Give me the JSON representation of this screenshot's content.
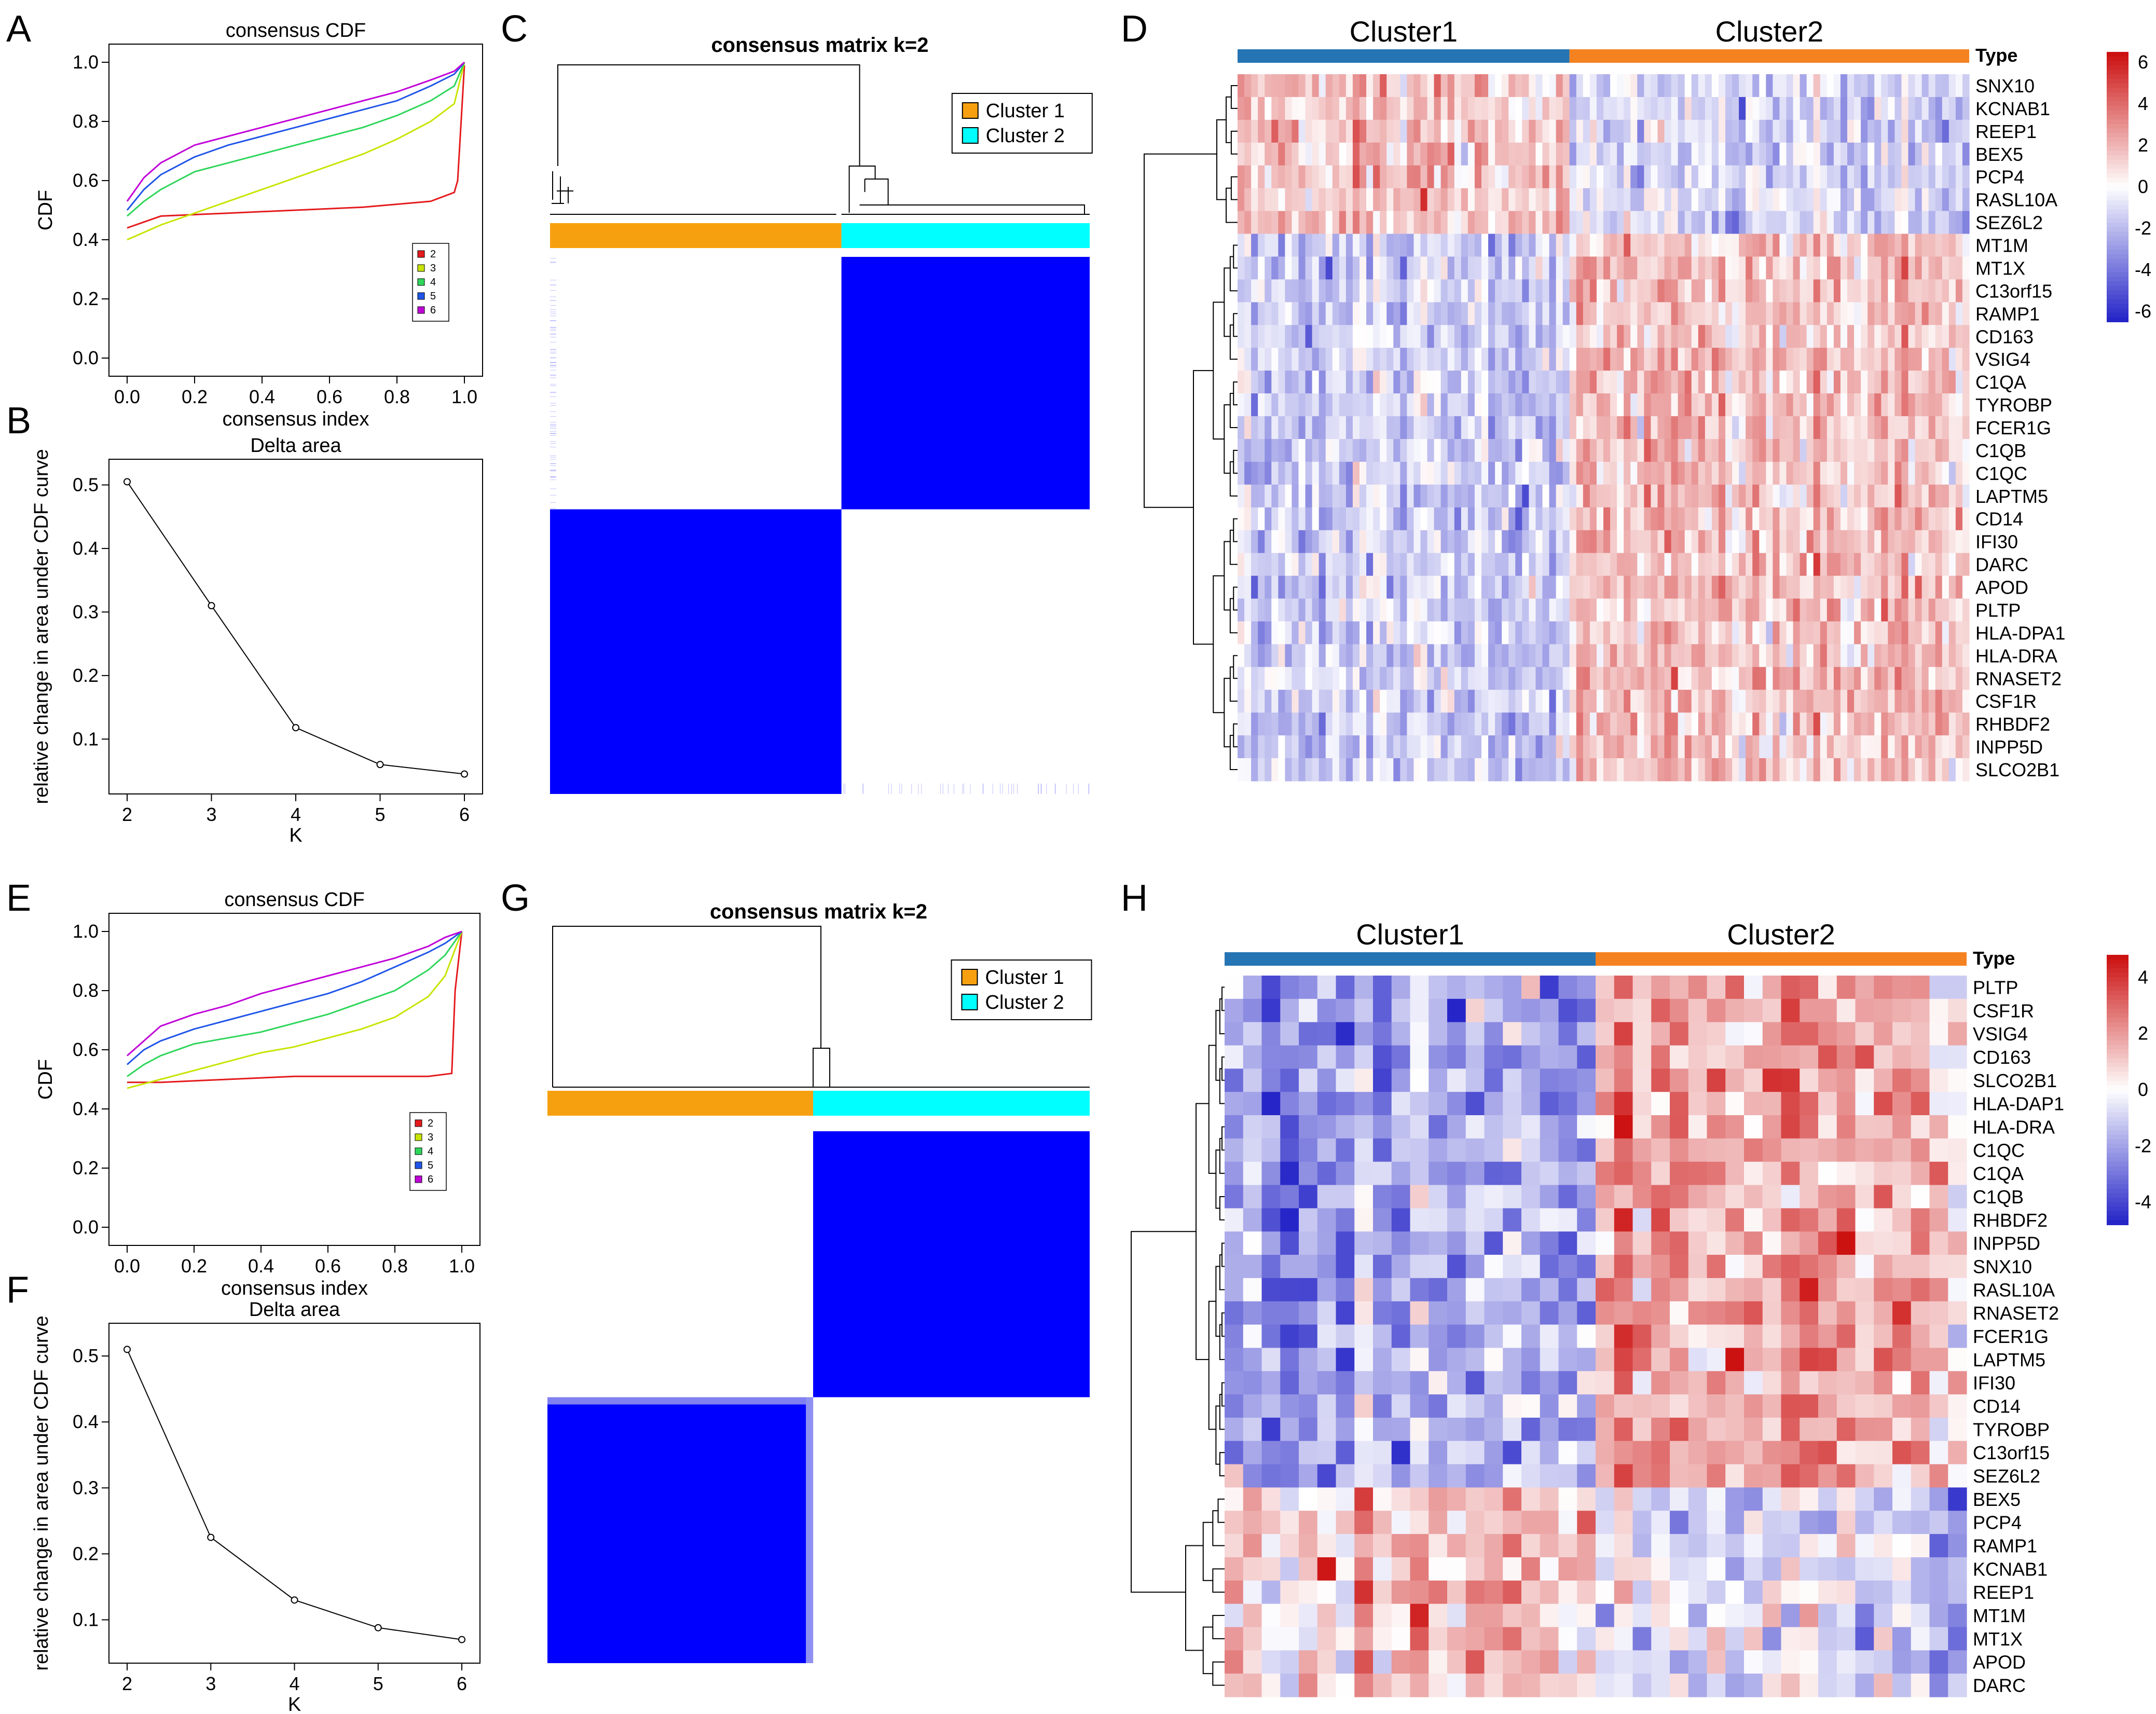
{
  "colors": {
    "cluster1_bar": "#F7A00F",
    "cluster2_bar": "#00FFFF",
    "matrix_blue": "#0000FF",
    "heat_low": "#2626C8",
    "heat_mid": "#FFFFFF",
    "heat_high": "#CC1111",
    "type_cluster1": "#2574B4",
    "type_cluster2": "#F58220",
    "cdf_series": [
      "#E41A1C",
      "#C8E400",
      "#2ED65A",
      "#2055E8",
      "#C000D8"
    ]
  },
  "chart_data": [
    {
      "panel": "A",
      "type": "line",
      "title": "consensus CDF",
      "xlabel": "consensus index",
      "ylabel": "CDF",
      "xlim": [
        0,
        1
      ],
      "ylim": [
        0,
        1
      ],
      "xticks": [
        "0.0",
        "0.2",
        "0.4",
        "0.6",
        "0.8",
        "1.0"
      ],
      "yticks": [
        "0.0",
        "0.2",
        "0.4",
        "0.6",
        "0.8",
        "1.0"
      ],
      "legend": [
        "2",
        "3",
        "4",
        "5",
        "6"
      ],
      "series": [
        {
          "name": "2",
          "x": [
            0,
            0.05,
            0.1,
            0.3,
            0.5,
            0.7,
            0.9,
            0.97,
            0.98,
            1.0
          ],
          "y": [
            0.44,
            0.46,
            0.48,
            0.49,
            0.5,
            0.51,
            0.53,
            0.56,
            0.6,
            0.99
          ]
        },
        {
          "name": "3",
          "x": [
            0,
            0.1,
            0.2,
            0.3,
            0.4,
            0.5,
            0.6,
            0.7,
            0.8,
            0.9,
            0.97,
            1.0
          ],
          "y": [
            0.4,
            0.45,
            0.49,
            0.53,
            0.57,
            0.61,
            0.65,
            0.69,
            0.74,
            0.8,
            0.86,
            1.0
          ]
        },
        {
          "name": "4",
          "x": [
            0,
            0.05,
            0.1,
            0.2,
            0.3,
            0.4,
            0.5,
            0.6,
            0.7,
            0.8,
            0.9,
            0.97,
            1.0
          ],
          "y": [
            0.48,
            0.53,
            0.57,
            0.63,
            0.66,
            0.69,
            0.72,
            0.75,
            0.78,
            0.82,
            0.87,
            0.92,
            1.0
          ]
        },
        {
          "name": "5",
          "x": [
            0,
            0.05,
            0.1,
            0.2,
            0.3,
            0.4,
            0.5,
            0.6,
            0.7,
            0.8,
            0.9,
            0.97,
            1.0
          ],
          "y": [
            0.5,
            0.57,
            0.62,
            0.68,
            0.72,
            0.75,
            0.78,
            0.81,
            0.84,
            0.87,
            0.92,
            0.96,
            1.0
          ]
        },
        {
          "name": "6",
          "x": [
            0,
            0.05,
            0.1,
            0.2,
            0.3,
            0.4,
            0.5,
            0.6,
            0.7,
            0.8,
            0.9,
            0.97,
            1.0
          ],
          "y": [
            0.53,
            0.61,
            0.66,
            0.72,
            0.75,
            0.78,
            0.81,
            0.84,
            0.87,
            0.9,
            0.94,
            0.97,
            1.0
          ]
        }
      ]
    },
    {
      "panel": "B",
      "type": "line",
      "title": "Delta area",
      "xlabel": "K",
      "ylabel": "relative change in area under CDF curve",
      "x": [
        2,
        3,
        4,
        5,
        6
      ],
      "y": [
        0.505,
        0.31,
        0.118,
        0.06,
        0.045
      ],
      "xlim": [
        2,
        6
      ],
      "ylim": [
        0.03,
        0.52
      ],
      "xticks": [
        "2",
        "3",
        "4",
        "5",
        "6"
      ],
      "yticks": [
        "0.1",
        "0.2",
        "0.3",
        "0.4",
        "0.5"
      ]
    },
    {
      "panel": "C",
      "type": "heatmap",
      "title": "consensus matrix k=2",
      "legend": [
        "Cluster 1",
        "Cluster 2"
      ],
      "cluster_fraction": [
        0.54,
        0.46
      ]
    },
    {
      "panel": "D",
      "type": "heatmap",
      "clusters": [
        "Cluster1",
        "Cluster2"
      ],
      "annotation_label": "Type",
      "cluster_fraction": [
        0.45,
        0.55
      ],
      "columns": 108,
      "genes": [
        "SNX10",
        "KCNAB1",
        "REEP1",
        "BEX5",
        "PCP4",
        "RASL10A",
        "SEZ6L2",
        "MT1M",
        "MT1X",
        "C13orf15",
        "RAMP1",
        "CD163",
        "VSIG4",
        "C1QA",
        "TYROBP",
        "FCER1G",
        "C1QB",
        "C1QC",
        "LAPTM5",
        "CD14",
        "IFI30",
        "DARC",
        "APOD",
        "PLTP",
        "HLA-DPA1",
        "HLA-DRA",
        "RNASET2",
        "CSF1R",
        "RHBDF2",
        "INPP5D",
        "SLCO2B1"
      ],
      "gene_group_size": 7,
      "scale_ticks": [
        "6",
        "4",
        "2",
        "0",
        "-2",
        "-4",
        "-6"
      ],
      "scale_range": [
        -6.5,
        6.5
      ]
    },
    {
      "panel": "E",
      "type": "line",
      "title": "consensus CDF",
      "xlabel": "consensus index",
      "ylabel": "CDF",
      "xlim": [
        0,
        1
      ],
      "ylim": [
        0,
        1
      ],
      "xticks": [
        "0.0",
        "0.2",
        "0.4",
        "0.6",
        "0.8",
        "1.0"
      ],
      "yticks": [
        "0.0",
        "0.2",
        "0.4",
        "0.6",
        "0.8",
        "1.0"
      ],
      "legend": [
        "2",
        "3",
        "4",
        "5",
        "6"
      ],
      "series": [
        {
          "name": "2",
          "x": [
            0,
            0.1,
            0.3,
            0.5,
            0.7,
            0.9,
            0.97,
            0.98,
            1.0
          ],
          "y": [
            0.49,
            0.49,
            0.5,
            0.51,
            0.51,
            0.51,
            0.52,
            0.8,
            1.0
          ]
        },
        {
          "name": "3",
          "x": [
            0,
            0.1,
            0.2,
            0.3,
            0.4,
            0.5,
            0.6,
            0.7,
            0.8,
            0.9,
            0.95,
            1.0
          ],
          "y": [
            0.47,
            0.5,
            0.53,
            0.56,
            0.59,
            0.61,
            0.64,
            0.67,
            0.71,
            0.78,
            0.85,
            1.0
          ]
        },
        {
          "name": "4",
          "x": [
            0,
            0.05,
            0.1,
            0.2,
            0.3,
            0.4,
            0.5,
            0.6,
            0.7,
            0.8,
            0.9,
            0.95,
            1.0
          ],
          "y": [
            0.51,
            0.55,
            0.58,
            0.62,
            0.64,
            0.66,
            0.69,
            0.72,
            0.76,
            0.8,
            0.87,
            0.92,
            1.0
          ]
        },
        {
          "name": "5",
          "x": [
            0,
            0.05,
            0.1,
            0.2,
            0.3,
            0.4,
            0.5,
            0.6,
            0.7,
            0.8,
            0.9,
            0.95,
            1.0
          ],
          "y": [
            0.55,
            0.6,
            0.63,
            0.67,
            0.7,
            0.73,
            0.76,
            0.79,
            0.83,
            0.88,
            0.93,
            0.96,
            1.0
          ]
        },
        {
          "name": "6",
          "x": [
            0,
            0.05,
            0.1,
            0.2,
            0.3,
            0.4,
            0.5,
            0.6,
            0.7,
            0.8,
            0.9,
            0.95,
            1.0
          ],
          "y": [
            0.58,
            0.63,
            0.68,
            0.72,
            0.75,
            0.79,
            0.82,
            0.85,
            0.88,
            0.91,
            0.95,
            0.98,
            1.0
          ]
        }
      ]
    },
    {
      "panel": "F",
      "type": "line",
      "title": "Delta area",
      "xlabel": "K",
      "ylabel": "relative change in area under CDF curve",
      "x": [
        2,
        3,
        4,
        5,
        6
      ],
      "y": [
        0.51,
        0.225,
        0.13,
        0.088,
        0.07
      ],
      "xlim": [
        2,
        6
      ],
      "ylim": [
        0.05,
        0.53
      ],
      "xticks": [
        "2",
        "3",
        "4",
        "5",
        "6"
      ],
      "yticks": [
        "0.1",
        "0.2",
        "0.3",
        "0.4",
        "0.5"
      ]
    },
    {
      "panel": "G",
      "type": "heatmap",
      "title": "consensus matrix k=2",
      "legend": [
        "Cluster 1",
        "Cluster 2"
      ],
      "cluster_fraction": [
        0.49,
        0.51
      ]
    },
    {
      "panel": "H",
      "type": "heatmap",
      "clusters": [
        "Cluster1",
        "Cluster2"
      ],
      "annotation_label": "Type",
      "cluster_fraction": [
        0.49,
        0.51
      ],
      "columns": 40,
      "genes": [
        "PLTP",
        "CSF1R",
        "VSIG4",
        "CD163",
        "SLCO2B1",
        "HLA-DAP1",
        "HLA-DRA",
        "C1QC",
        "C1QA",
        "C1QB",
        "RHBDF2",
        "INPP5D",
        "SNX10",
        "RASL10A",
        "RNASET2",
        "FCER1G",
        "LAPTM5",
        "IFI30",
        "CD14",
        "TYROBP",
        "C13orf15",
        "SEZ6L2",
        "BEX5",
        "PCP4",
        "RAMP1",
        "KCNAB1",
        "REEP1",
        "MT1M",
        "MT1X",
        "APOD",
        "DARC"
      ],
      "gene_group_size": 22,
      "scale_ticks": [
        "4",
        "2",
        "0",
        "-2",
        "-4"
      ],
      "scale_range": [
        -4.8,
        4.8
      ]
    }
  ]
}
